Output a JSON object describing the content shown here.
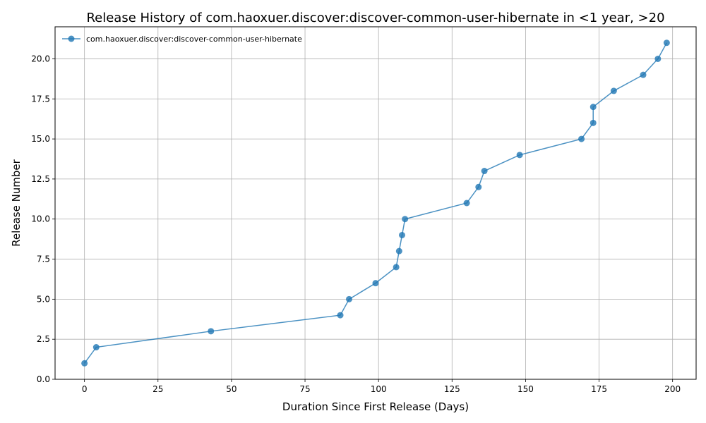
{
  "chart_data": {
    "type": "line",
    "title": "Release History of com.haoxuer.discover:discover-common-user-hibernate in <1 year, >20",
    "xlabel": "Duration Since First Release (Days)",
    "ylabel": "Release Number",
    "xlim": [
      -10,
      208
    ],
    "ylim": [
      0,
      22
    ],
    "xticks": [
      0,
      25,
      50,
      75,
      100,
      125,
      150,
      175,
      200
    ],
    "yticks": [
      0.0,
      2.5,
      5.0,
      7.5,
      10.0,
      12.5,
      15.0,
      17.5,
      20.0
    ],
    "xtick_labels": [
      "0",
      "25",
      "50",
      "75",
      "100",
      "125",
      "150",
      "175",
      "200"
    ],
    "ytick_labels": [
      "0.0",
      "2.5",
      "5.0",
      "7.5",
      "10.0",
      "12.5",
      "15.0",
      "17.5",
      "20.0"
    ],
    "grid": true,
    "legend_position": "top-left",
    "series": [
      {
        "name": "com.haoxuer.discover:discover-common-user-hibernate",
        "color": "#1f77b4",
        "marker": "circle",
        "x": [
          0,
          4,
          43,
          87,
          90,
          99,
          106,
          107,
          108,
          109,
          130,
          134,
          136,
          148,
          169,
          173,
          173,
          180,
          190,
          195,
          198
        ],
        "y": [
          1,
          2,
          3,
          4,
          5,
          6,
          7,
          8,
          9,
          10,
          11,
          12,
          13,
          14,
          15,
          16,
          17,
          18,
          19,
          20,
          21
        ]
      }
    ]
  }
}
